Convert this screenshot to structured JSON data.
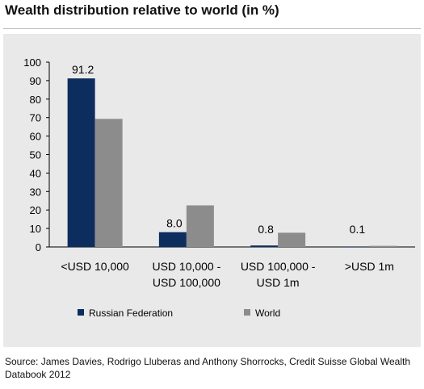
{
  "title": "Wealth distribution relative to world (in %)",
  "source": "Source: James Davies, Rodrigo Lluberas and Anthony Shorrocks, Credit Suisse Global Wealth Databook 2012",
  "colors": {
    "russia": "#0d2d5e",
    "world": "#8c8c8c",
    "background": "#e9e9e9"
  },
  "chart_data": {
    "type": "bar",
    "title": "Wealth distribution relative to world (in %)",
    "categories": [
      [
        "<USD 10,000"
      ],
      [
        "USD 10,000 -",
        "USD 100,000"
      ],
      [
        "USD 100,000 -",
        "USD 1m"
      ],
      [
        ">USD 1m"
      ]
    ],
    "series": [
      {
        "name": "Russian Federation",
        "values": [
          91.2,
          8.0,
          0.8,
          0.1
        ],
        "data_labels": [
          "91.2",
          "8.0",
          "0.8",
          "0.1"
        ]
      },
      {
        "name": "World",
        "values": [
          69.3,
          22.5,
          7.7,
          0.6
        ]
      }
    ],
    "ylim": [
      0,
      100
    ],
    "yticks": [
      0,
      10,
      20,
      30,
      40,
      50,
      60,
      70,
      80,
      90,
      100
    ],
    "grid": false,
    "legend_position": "bottom"
  }
}
